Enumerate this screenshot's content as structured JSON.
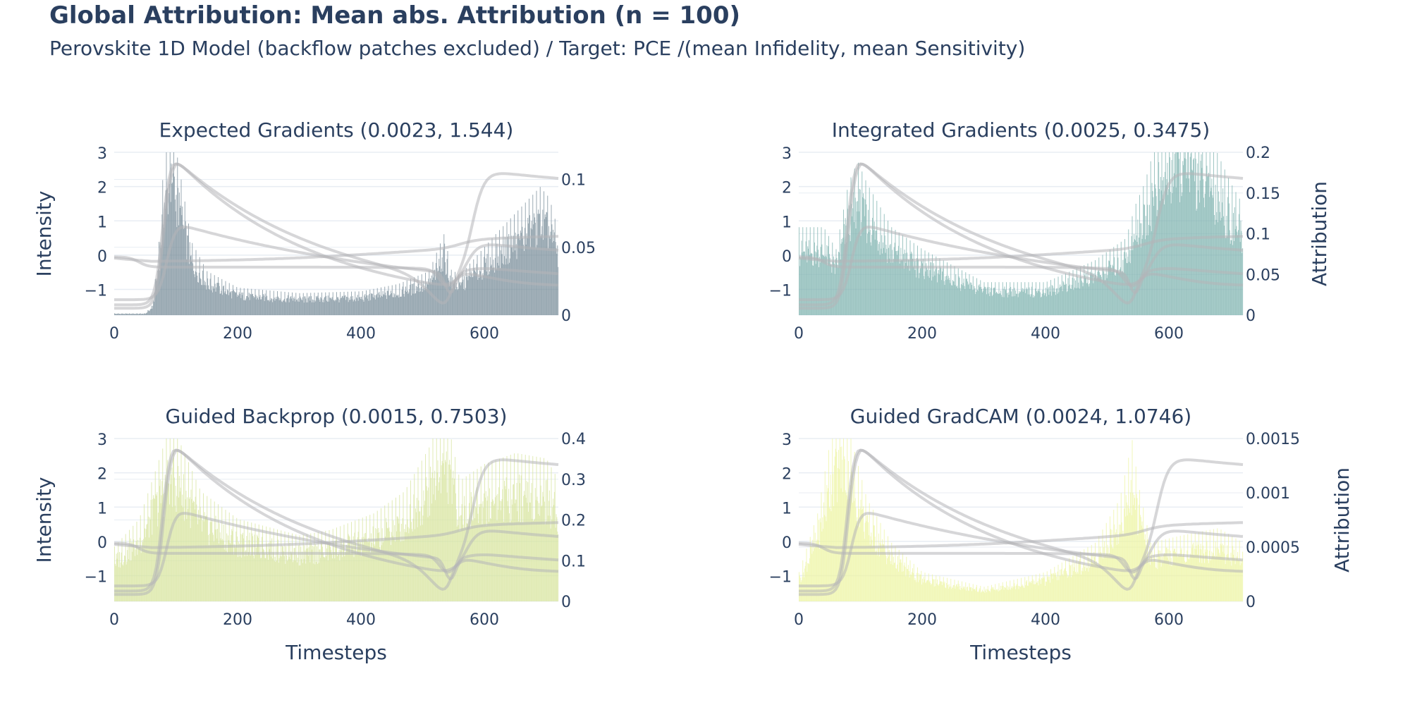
{
  "title": "Global Attribution: Mean abs. Attribution (n = 100)",
  "subtitle": "Perovskite 1D Model (backflow patches excluded) / Target: PCE /(mean Infidelity, mean Sensitivity)",
  "colors": {
    "text": "#2a3f5f",
    "grid": "#e8edf3",
    "curve": "#b4b4b8"
  },
  "chart_data": [
    {
      "type": "bar",
      "title": "Expected Gradients (0.0023, 1.544)",
      "bar_color": "#7a8e9a",
      "x_ticks": [
        0,
        200,
        400,
        600
      ],
      "y_left_ticks": [
        "3",
        "2",
        "1",
        "0",
        "−1"
      ],
      "y_left_title": "Intensity",
      "y_right_ticks": [
        "0.1",
        "0.05",
        "0"
      ],
      "y_right_title": "",
      "x_title": "",
      "x_range": [
        0,
        720
      ],
      "y_left_range": [
        -1.75,
        3
      ],
      "y_right_range": [
        0,
        0.12
      ],
      "attribution_profile": [
        [
          0,
          0.001
        ],
        [
          50,
          0.001
        ],
        [
          62,
          0.006
        ],
        [
          72,
          0.04
        ],
        [
          80,
          0.085
        ],
        [
          90,
          0.1
        ],
        [
          100,
          0.09
        ],
        [
          110,
          0.07
        ],
        [
          125,
          0.04
        ],
        [
          150,
          0.024
        ],
        [
          200,
          0.015
        ],
        [
          300,
          0.012
        ],
        [
          400,
          0.013
        ],
        [
          460,
          0.017
        ],
        [
          510,
          0.024
        ],
        [
          535,
          0.045
        ],
        [
          545,
          0.025
        ],
        [
          560,
          0.022
        ],
        [
          620,
          0.045
        ],
        [
          690,
          0.07
        ],
        [
          705,
          0.064
        ],
        [
          720,
          0.045
        ]
      ]
    },
    {
      "type": "bar",
      "title": "Integrated Gradients (0.0025, 0.3475)",
      "bar_color": "#7fb3b0",
      "x_ticks": [
        0,
        200,
        400,
        600
      ],
      "y_left_ticks": [
        "3",
        "2",
        "1",
        "0",
        "−1"
      ],
      "y_left_title": "",
      "y_right_ticks": [
        "0.2",
        "0.15",
        "0.1",
        "0.05",
        "0"
      ],
      "y_right_title": "Attribution",
      "x_title": "",
      "x_range": [
        0,
        720
      ],
      "y_left_range": [
        -1.75,
        3
      ],
      "y_right_range": [
        0,
        0.2
      ],
      "attribution_profile": [
        [
          0,
          0.08
        ],
        [
          40,
          0.08
        ],
        [
          60,
          0.06
        ],
        [
          80,
          0.12
        ],
        [
          95,
          0.14
        ],
        [
          110,
          0.12
        ],
        [
          150,
          0.08
        ],
        [
          200,
          0.06
        ],
        [
          300,
          0.03
        ],
        [
          400,
          0.03
        ],
        [
          480,
          0.05
        ],
        [
          530,
          0.07
        ],
        [
          545,
          0.1
        ],
        [
          560,
          0.12
        ],
        [
          580,
          0.16
        ],
        [
          620,
          0.19
        ],
        [
          660,
          0.17
        ],
        [
          700,
          0.12
        ],
        [
          720,
          0.1
        ]
      ]
    },
    {
      "type": "bar",
      "title": "Guided Backprop (0.0015, 0.7503)",
      "bar_color": "#d7e59e",
      "x_ticks": [
        0,
        200,
        400,
        600
      ],
      "y_left_ticks": [
        "3",
        "2",
        "1",
        "0",
        "−1"
      ],
      "y_left_title": "Intensity",
      "y_right_ticks": [
        "0.4",
        "0.3",
        "0.2",
        "0.1",
        "0"
      ],
      "y_right_title": "",
      "x_title": "Timesteps",
      "x_range": [
        0,
        720
      ],
      "y_left_range": [
        -1.75,
        3
      ],
      "y_right_range": [
        0,
        0.4
      ],
      "attribution_profile": [
        [
          0,
          0.1
        ],
        [
          40,
          0.15
        ],
        [
          70,
          0.25
        ],
        [
          90,
          0.32
        ],
        [
          110,
          0.28
        ],
        [
          140,
          0.2
        ],
        [
          200,
          0.15
        ],
        [
          300,
          0.12
        ],
        [
          350,
          0.13
        ],
        [
          420,
          0.16
        ],
        [
          470,
          0.2
        ],
        [
          510,
          0.28
        ],
        [
          535,
          0.36
        ],
        [
          545,
          0.3
        ],
        [
          560,
          0.22
        ],
        [
          600,
          0.25
        ],
        [
          650,
          0.27
        ],
        [
          700,
          0.26
        ],
        [
          720,
          0.22
        ]
      ]
    },
    {
      "type": "bar",
      "title": "Guided GradCAM (0.0024, 1.0746)",
      "bar_color": "#eef5a4",
      "x_ticks": [
        0,
        200,
        400,
        600
      ],
      "y_left_ticks": [
        "3",
        "2",
        "1",
        "0",
        "−1"
      ],
      "y_left_title": "",
      "y_right_ticks": [
        "0.0015",
        "0.001",
        "0.0005",
        "0"
      ],
      "y_right_title": "Attribution",
      "x_title": "Timesteps",
      "x_range": [
        0,
        720
      ],
      "y_left_range": [
        -1.75,
        3
      ],
      "y_right_range": [
        0,
        0.0015
      ],
      "attribution_profile": [
        [
          0,
          0.0002
        ],
        [
          30,
          0.0006
        ],
        [
          55,
          0.0012
        ],
        [
          70,
          0.0013
        ],
        [
          85,
          0.0011
        ],
        [
          110,
          0.0007
        ],
        [
          150,
          0.0004
        ],
        [
          200,
          0.0002
        ],
        [
          300,
          0.0001
        ],
        [
          400,
          0.0002
        ],
        [
          480,
          0.0004
        ],
        [
          520,
          0.0007
        ],
        [
          540,
          0.0011
        ],
        [
          550,
          0.0008
        ],
        [
          570,
          0.0004
        ],
        [
          620,
          0.00045
        ],
        [
          680,
          0.0005
        ],
        [
          720,
          0.0004
        ]
      ]
    }
  ]
}
